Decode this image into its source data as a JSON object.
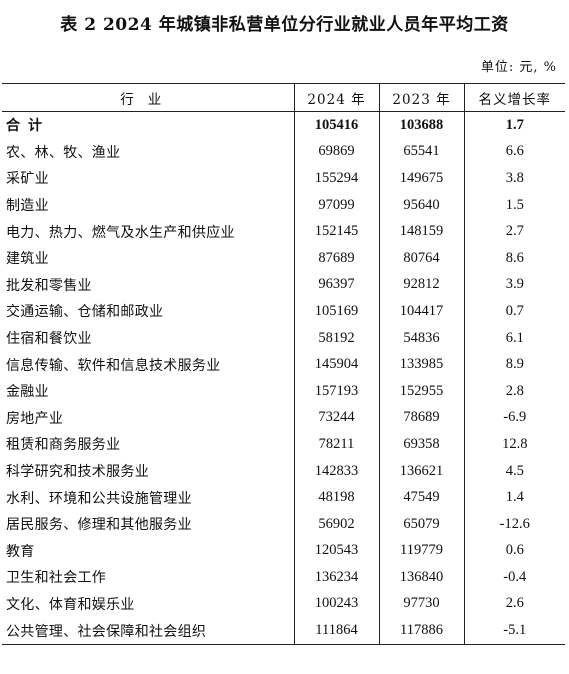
{
  "title": "表 2    2024 年城镇非私营单位分行业就业人员年平均工资",
  "unit": "单位: 元, %",
  "header": {
    "industry": "行业",
    "y2024": "2024 年",
    "y2023": "2023 年",
    "growth": "名义增长率"
  },
  "rows": [
    {
      "name": "合计",
      "y2024": "105416",
      "y2023": "103688",
      "growth": "1.7"
    },
    {
      "name": "农、林、牧、渔业",
      "y2024": "69869",
      "y2023": "65541",
      "growth": "6.6"
    },
    {
      "name": "采矿业",
      "y2024": "155294",
      "y2023": "149675",
      "growth": "3.8"
    },
    {
      "name": "制造业",
      "y2024": "97099",
      "y2023": "95640",
      "growth": "1.5"
    },
    {
      "name": "电力、热力、燃气及水生产和供应业",
      "y2024": "152145",
      "y2023": "148159",
      "growth": "2.7"
    },
    {
      "name": "建筑业",
      "y2024": "87689",
      "y2023": "80764",
      "growth": "8.6"
    },
    {
      "name": "批发和零售业",
      "y2024": "96397",
      "y2023": "92812",
      "growth": "3.9"
    },
    {
      "name": "交通运输、仓储和邮政业",
      "y2024": "105169",
      "y2023": "104417",
      "growth": "0.7"
    },
    {
      "name": "住宿和餐饮业",
      "y2024": "58192",
      "y2023": "54836",
      "growth": "6.1"
    },
    {
      "name": "信息传输、软件和信息技术服务业",
      "y2024": "145904",
      "y2023": "133985",
      "growth": "8.9"
    },
    {
      "name": "金融业",
      "y2024": "157193",
      "y2023": "152955",
      "growth": "2.8"
    },
    {
      "name": "房地产业",
      "y2024": "73244",
      "y2023": "78689",
      "growth": "-6.9"
    },
    {
      "name": "租赁和商务服务业",
      "y2024": "78211",
      "y2023": "69358",
      "growth": "12.8"
    },
    {
      "name": "科学研究和技术服务业",
      "y2024": "142833",
      "y2023": "136621",
      "growth": "4.5"
    },
    {
      "name": "水利、环境和公共设施管理业",
      "y2024": "48198",
      "y2023": "47549",
      "growth": "1.4"
    },
    {
      "name": "居民服务、修理和其他服务业",
      "y2024": "56902",
      "y2023": "65079",
      "growth": "-12.6"
    },
    {
      "name": "教育",
      "y2024": "120543",
      "y2023": "119779",
      "growth": "0.6"
    },
    {
      "name": "卫生和社会工作",
      "y2024": "136234",
      "y2023": "136840",
      "growth": "-0.4"
    },
    {
      "name": "文化、体育和娱乐业",
      "y2024": "100243",
      "y2023": "97730",
      "growth": "2.6"
    },
    {
      "name": "公共管理、社会保障和社会组织",
      "y2024": "111864",
      "y2023": "117886",
      "growth": "-5.1"
    }
  ]
}
